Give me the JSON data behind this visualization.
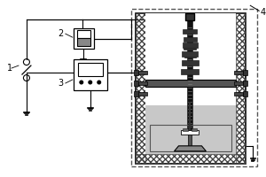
{
  "bg_color": "#ffffff",
  "line_color": "#000000",
  "label_1": "1",
  "label_2": "2",
  "label_3": "3",
  "label_4": "4",
  "figsize": [
    3.0,
    2.0
  ],
  "dpi": 100
}
